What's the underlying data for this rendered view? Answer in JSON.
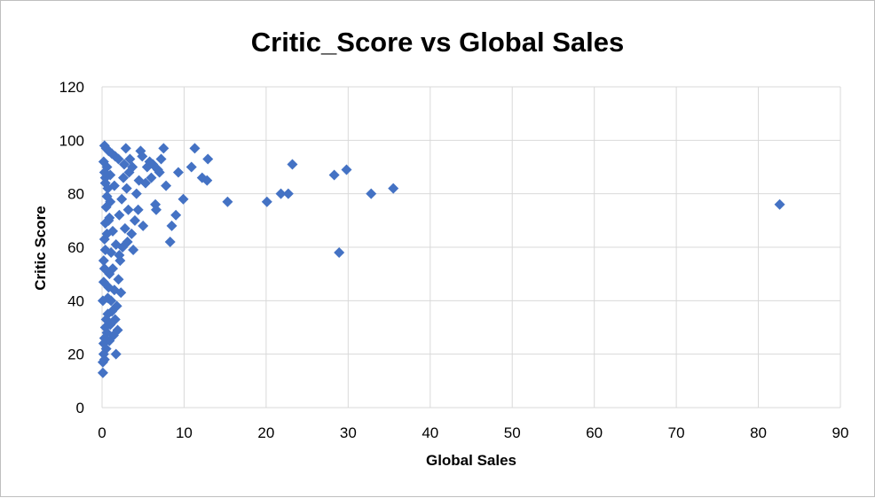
{
  "chart_data": {
    "type": "scatter",
    "title": "Critic_Score vs Global Sales",
    "xlabel": "Global Sales",
    "ylabel": "Critic Score",
    "xlim": [
      0,
      90
    ],
    "ylim": [
      0,
      120
    ],
    "x_ticks": [
      0,
      10,
      20,
      30,
      40,
      50,
      60,
      70,
      80,
      90
    ],
    "y_ticks": [
      0,
      20,
      40,
      60,
      80,
      100,
      120
    ],
    "grid": true,
    "marker": "diamond",
    "color": "#4472c4",
    "series": [
      {
        "points": [
          [
            82.6,
            76
          ],
          [
            35.5,
            82
          ],
          [
            32.8,
            80
          ],
          [
            29.8,
            89
          ],
          [
            28.9,
            58
          ],
          [
            28.3,
            87
          ],
          [
            23.2,
            91
          ],
          [
            22.7,
            80
          ],
          [
            21.8,
            80
          ],
          [
            20.1,
            77
          ],
          [
            15.3,
            77
          ],
          [
            12.9,
            93
          ],
          [
            12.8,
            85
          ],
          [
            12.2,
            86
          ],
          [
            11.3,
            97
          ],
          [
            10.9,
            90
          ],
          [
            9.9,
            78
          ],
          [
            9.3,
            88
          ],
          [
            9.0,
            72
          ],
          [
            8.5,
            68
          ],
          [
            8.3,
            62
          ],
          [
            7.8,
            83
          ],
          [
            7.5,
            97
          ],
          [
            7.2,
            93
          ],
          [
            7.0,
            88
          ],
          [
            6.8,
            89
          ],
          [
            6.6,
            74
          ],
          [
            6.5,
            76
          ],
          [
            6.2,
            91
          ],
          [
            6.0,
            86
          ],
          [
            5.8,
            92
          ],
          [
            5.5,
            90
          ],
          [
            5.3,
            84
          ],
          [
            5.0,
            68
          ],
          [
            4.9,
            94
          ],
          [
            4.7,
            96
          ],
          [
            4.5,
            85
          ],
          [
            4.4,
            74
          ],
          [
            4.2,
            80
          ],
          [
            4.0,
            70
          ],
          [
            3.8,
            59
          ],
          [
            3.7,
            90
          ],
          [
            3.6,
            65
          ],
          [
            3.4,
            93
          ],
          [
            3.3,
            88
          ],
          [
            3.2,
            74
          ],
          [
            3.1,
            62
          ],
          [
            3.0,
            82
          ],
          [
            2.9,
            97
          ],
          [
            2.8,
            67
          ],
          [
            2.7,
            91
          ],
          [
            2.6,
            86
          ],
          [
            2.5,
            60
          ],
          [
            2.4,
            78
          ],
          [
            2.3,
            43
          ],
          [
            2.2,
            55
          ],
          [
            2.1,
            72
          ],
          [
            2.0,
            48
          ],
          [
            1.9,
            29
          ],
          [
            1.8,
            38
          ],
          [
            1.7,
            20
          ],
          [
            1.6,
            33
          ],
          [
            1.5,
            44
          ],
          [
            1.4,
            27
          ],
          [
            1.3,
            52
          ],
          [
            1.2,
            36
          ],
          [
            1.1,
            40
          ],
          [
            1.0,
            31
          ],
          [
            0.9,
            25
          ],
          [
            0.8,
            45
          ],
          [
            0.7,
            35
          ],
          [
            0.6,
            28
          ],
          [
            0.5,
            22
          ],
          [
            0.4,
            30
          ],
          [
            0.3,
            18
          ],
          [
            0.2,
            24
          ],
          [
            0.1,
            13
          ],
          [
            0.1,
            17
          ],
          [
            0.2,
            20
          ],
          [
            0.3,
            26
          ],
          [
            0.5,
            33
          ],
          [
            0.7,
            41
          ],
          [
            0.9,
            50
          ],
          [
            1.1,
            58
          ],
          [
            0.3,
            98
          ],
          [
            0.5,
            97
          ],
          [
            0.8,
            96
          ],
          [
            1.2,
            95
          ],
          [
            1.6,
            94
          ],
          [
            2.0,
            93
          ],
          [
            0.4,
            86
          ],
          [
            0.6,
            79
          ],
          [
            0.9,
            71
          ],
          [
            1.3,
            66
          ],
          [
            1.7,
            61
          ],
          [
            2.1,
            57
          ],
          [
            0.2,
            92
          ],
          [
            0.3,
            88
          ],
          [
            0.4,
            84
          ],
          [
            0.6,
            90
          ],
          [
            1.0,
            87
          ],
          [
            1.5,
            83
          ],
          [
            0.2,
            55
          ],
          [
            0.3,
            63
          ],
          [
            0.4,
            69
          ],
          [
            0.5,
            75
          ],
          [
            0.7,
            82
          ],
          [
            1.0,
            77
          ],
          [
            0.1,
            40
          ],
          [
            0.2,
            47
          ],
          [
            0.3,
            52
          ],
          [
            0.4,
            59
          ],
          [
            0.6,
            65
          ],
          [
            0.8,
            70
          ]
        ]
      }
    ]
  }
}
